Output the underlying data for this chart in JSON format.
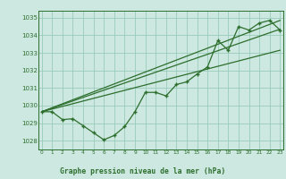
{
  "bg_color": "#cce8e0",
  "grid_color": "#99ccbb",
  "line_color": "#2d6e2d",
  "label_text": "Graphe pression niveau de la mer (hPa)",
  "ylim": [
    1027.5,
    1035.4
  ],
  "xlim": [
    -0.3,
    23.3
  ],
  "yticks": [
    1028,
    1029,
    1030,
    1031,
    1032,
    1033,
    1034,
    1035
  ],
  "xticks": [
    0,
    1,
    2,
    3,
    4,
    5,
    6,
    7,
    8,
    9,
    10,
    11,
    12,
    13,
    14,
    15,
    16,
    17,
    18,
    19,
    20,
    21,
    22,
    23
  ],
  "main_x": [
    0,
    1,
    2,
    3,
    4,
    5,
    6,
    7,
    8,
    9,
    10,
    11,
    12,
    13,
    14,
    15,
    16,
    17,
    18,
    19,
    20,
    21,
    22,
    23
  ],
  "main_y": [
    1029.65,
    1029.65,
    1029.2,
    1029.25,
    1028.85,
    1028.45,
    1028.05,
    1028.3,
    1028.8,
    1029.65,
    1030.75,
    1030.75,
    1030.55,
    1031.2,
    1031.35,
    1031.8,
    1032.2,
    1033.7,
    1033.15,
    1034.5,
    1034.3,
    1034.7,
    1034.85,
    1034.3
  ],
  "trend1_x": [
    0,
    23
  ],
  "trend1_y": [
    1029.65,
    1034.85
  ],
  "trend2_x": [
    0,
    23
  ],
  "trend2_y": [
    1029.65,
    1034.35
  ],
  "trend3_x": [
    0,
    23
  ],
  "trend3_y": [
    1029.65,
    1033.15
  ]
}
